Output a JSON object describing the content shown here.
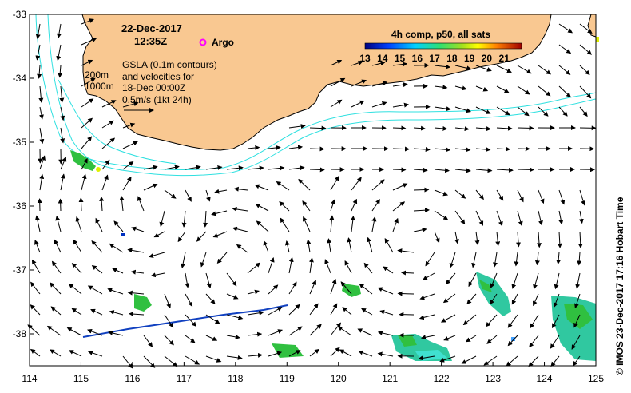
{
  "header": {
    "date": "22-Dec-2017",
    "time": "12:35Z",
    "argo_label": "Argo"
  },
  "annotation": {
    "depth_200": "200m",
    "depth_1000": "1000m",
    "line1": "GSLA (0.1m contours)",
    "line2": "and velocities for",
    "line3": "18-Dec 00:00Z",
    "line4": "0.5m/s (1kt 24h)"
  },
  "colorbar": {
    "title": "4h comp, p50, all sats",
    "ticks": [
      "13",
      "14",
      "15",
      "16",
      "17",
      "18",
      "19",
      "20",
      "21"
    ],
    "range": [
      13,
      22
    ]
  },
  "side_label": "© IMOS 23-Dec-2017 17:16 Hobart Time",
  "axes": {
    "x_ticks": [
      "114",
      "115",
      "116",
      "117",
      "118",
      "119",
      "120",
      "121",
      "122",
      "123",
      "124",
      "125"
    ],
    "y_ticks": [
      "-33",
      "-34",
      "-35",
      "-36",
      "-37",
      "-38"
    ],
    "xlim": [
      114,
      125
    ],
    "ylim": [
      -38.5,
      -33
    ]
  },
  "colors": {
    "land": "#f9c891",
    "coastline": "#000000",
    "contour": "#2fe0e0",
    "argo": "#ff00ff"
  }
}
